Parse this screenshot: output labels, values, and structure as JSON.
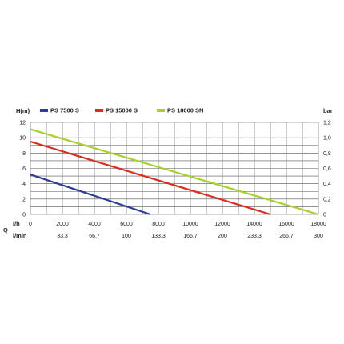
{
  "chart_data": {
    "type": "line",
    "ylabel_left": "H(m)",
    "ylabel_right": "bar",
    "x_row_label": "l/h",
    "x_group_label": "Q",
    "x_alt_row_label": "l/min",
    "xlim": [
      0,
      18000
    ],
    "ylim": [
      0,
      12
    ],
    "ylim_right": [
      0,
      1.2
    ],
    "grid": true,
    "legend_position": "top",
    "x_ticks": [
      "0",
      "2000",
      "4000",
      "6000",
      "8000",
      "10000",
      "12000",
      "14000",
      "16000",
      "18000"
    ],
    "x_alt_ticks": [
      "33,3",
      "66,7",
      "100",
      "133,3",
      "166,7",
      "200",
      "233,3",
      "266,7",
      "300"
    ],
    "y_ticks_left": [
      "0",
      "2",
      "4",
      "6",
      "8",
      "10",
      "12"
    ],
    "y_ticks_right": [
      "0",
      "0,2",
      "0,4",
      "0,6",
      "0,8",
      "1,0",
      "1,2"
    ],
    "series": [
      {
        "name": "PS 7500 S",
        "color": "#2b3e96",
        "points": [
          [
            0,
            5.2
          ],
          [
            7500,
            0
          ]
        ]
      },
      {
        "name": "PS 15000 S",
        "color": "#dd2c1e",
        "points": [
          [
            0,
            9.5
          ],
          [
            15000,
            0
          ]
        ]
      },
      {
        "name": "PS 18000 SN",
        "color": "#a8cf2c",
        "points": [
          [
            0,
            11.1
          ],
          [
            18000,
            0
          ]
        ]
      }
    ]
  }
}
